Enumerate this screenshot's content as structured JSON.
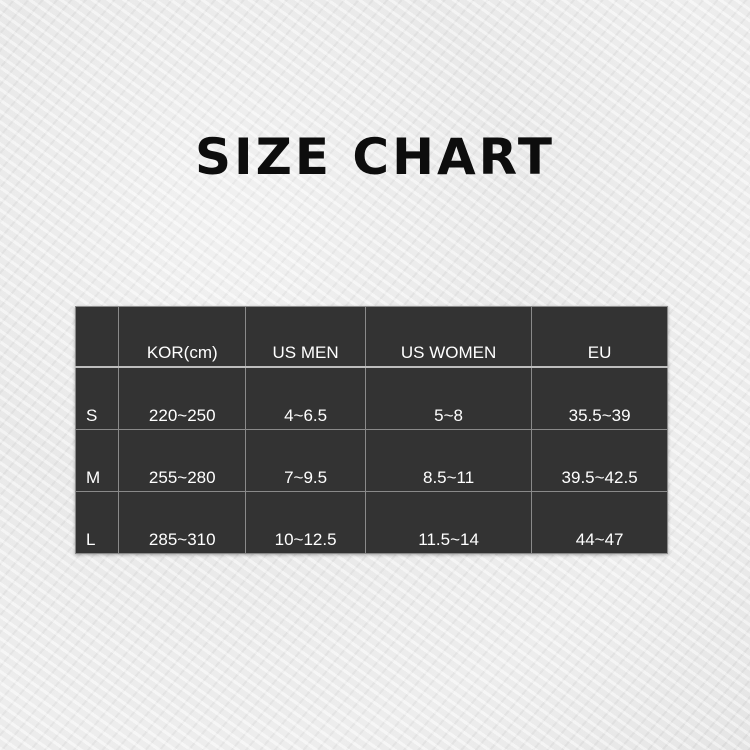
{
  "title": "SIZE CHART",
  "table": {
    "headers": [
      "",
      "KOR(cm)",
      "US MEN",
      "US WOMEN",
      "EU"
    ],
    "rows": [
      [
        "S",
        "220~250",
        "4~6.5",
        "5~8",
        "35.5~39"
      ],
      [
        "M",
        "255~280",
        "7~9.5",
        "8.5~11",
        "39.5~42.5"
      ],
      [
        "L",
        "285~310",
        "10~12.5",
        "11.5~14",
        "44~47"
      ]
    ]
  }
}
